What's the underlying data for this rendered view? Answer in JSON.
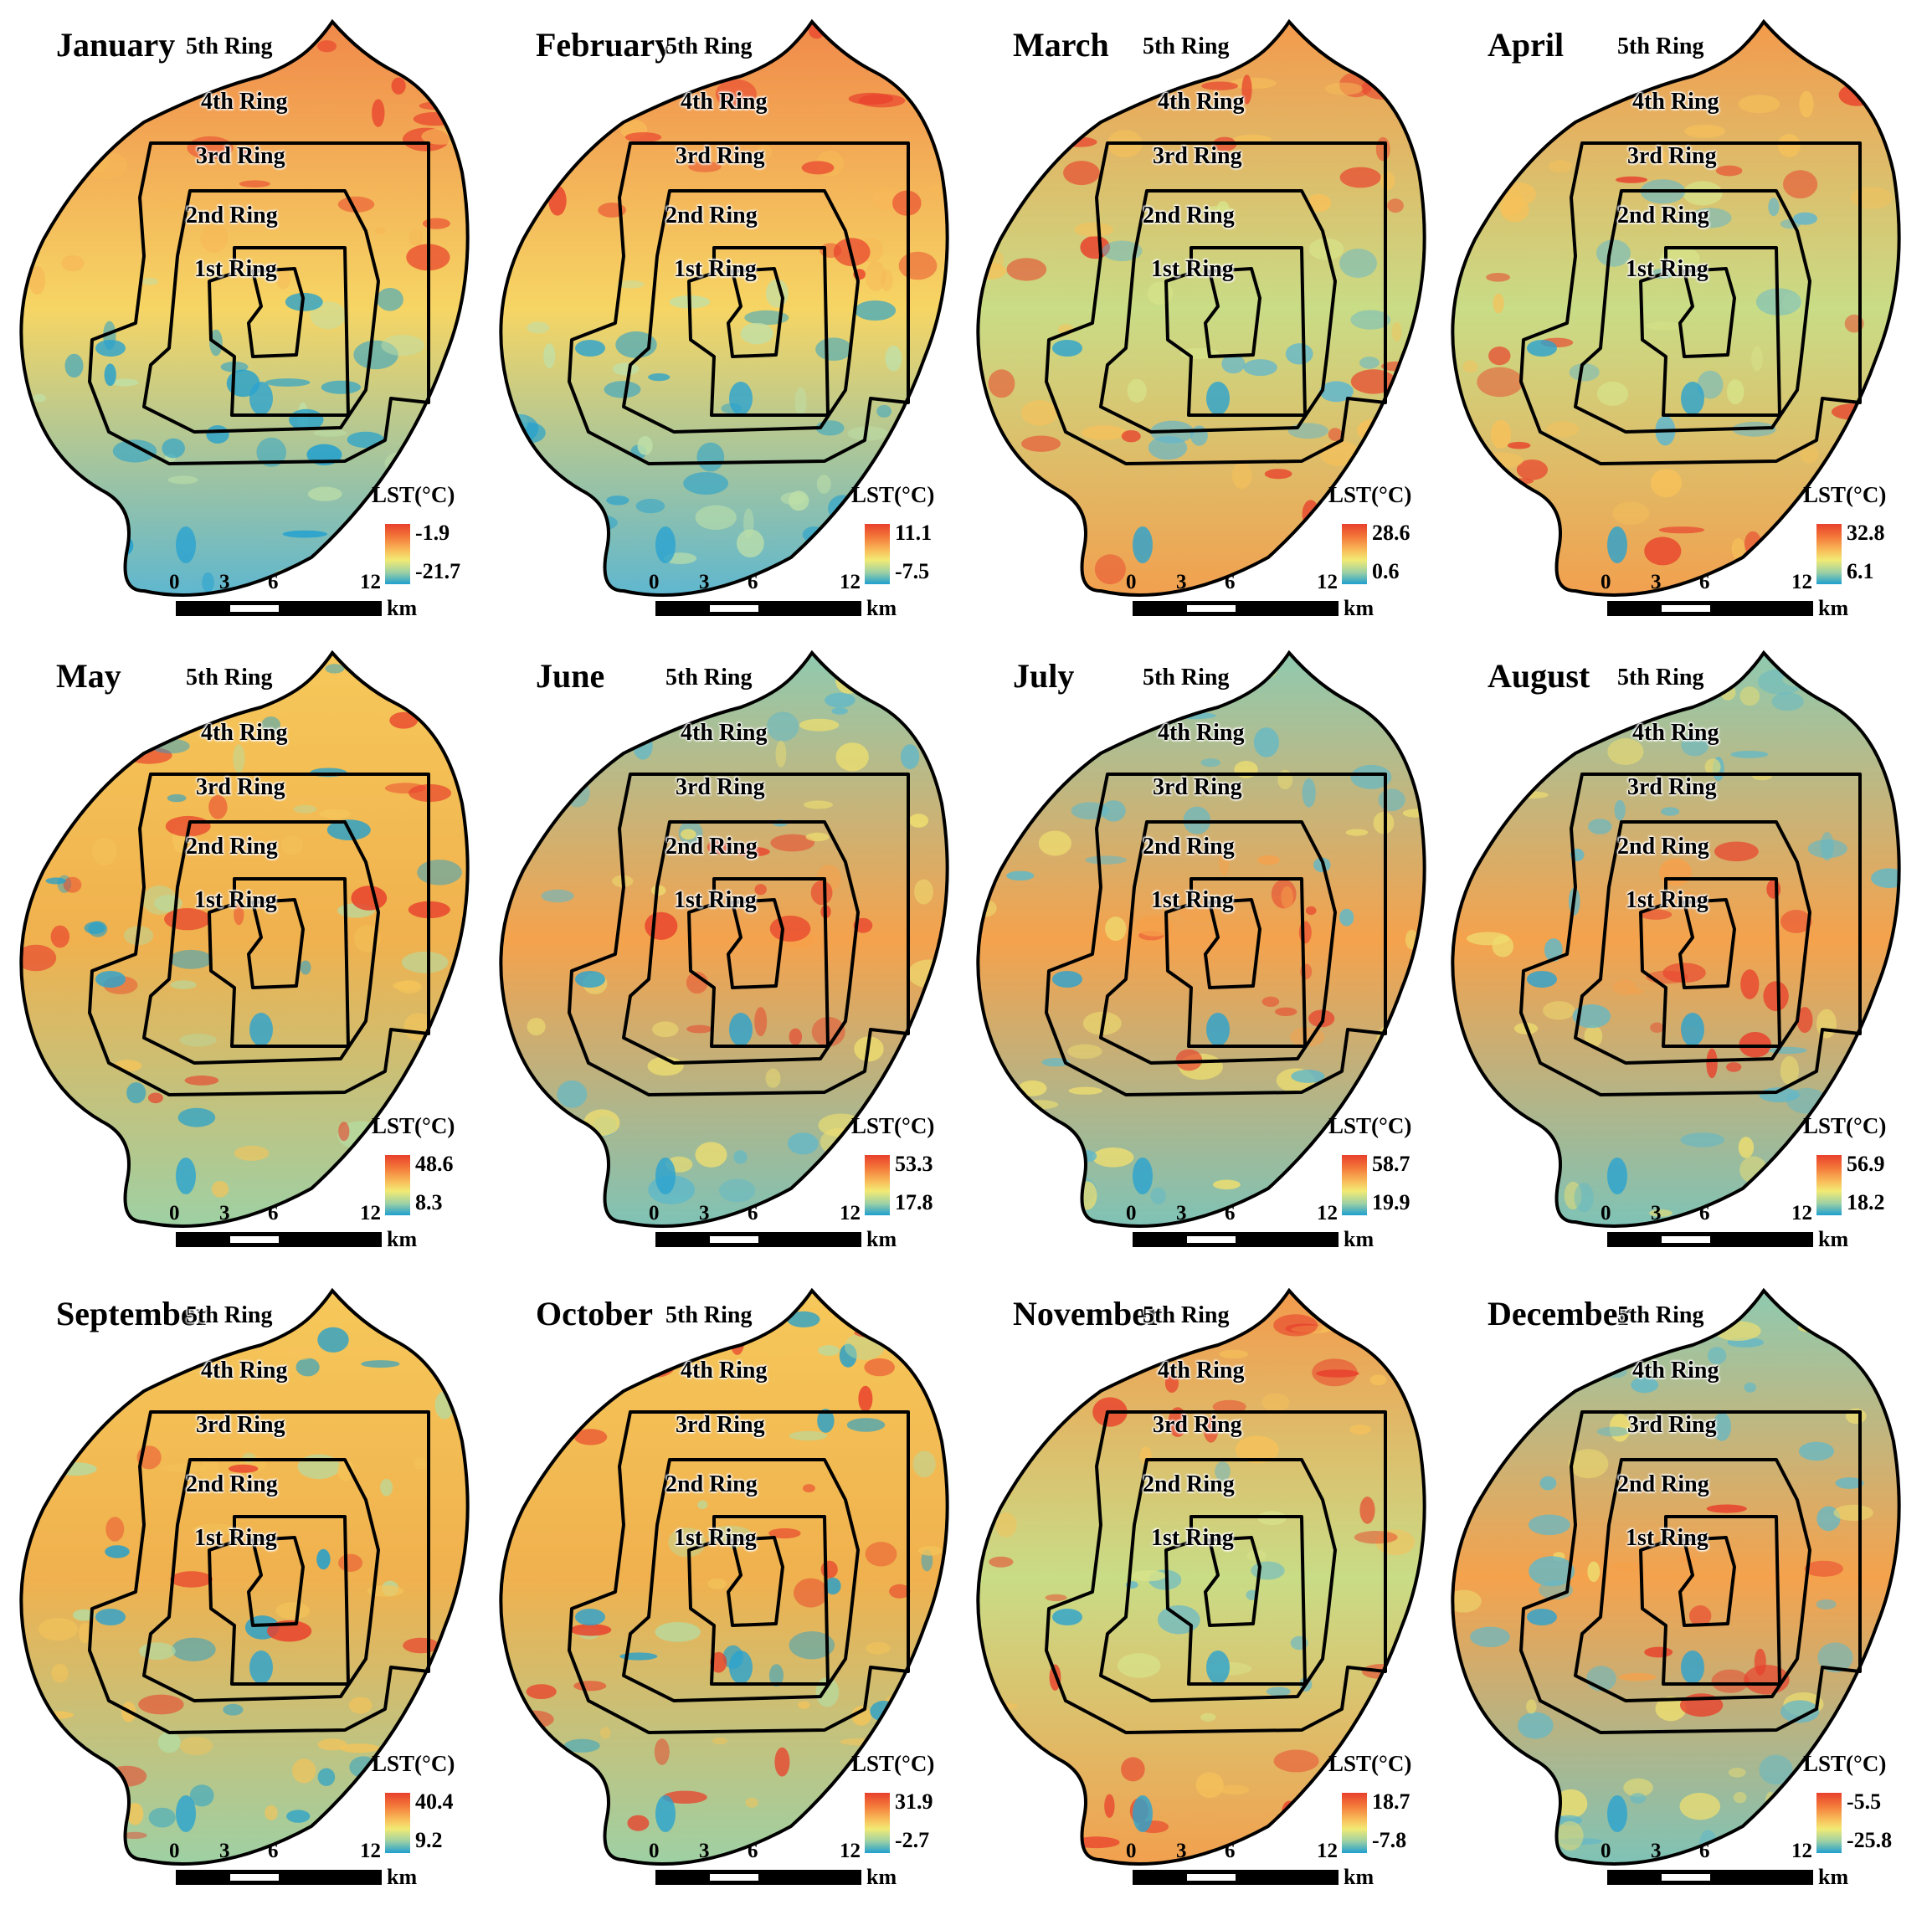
{
  "ring_labels": [
    "5th Ring",
    "4th Ring",
    "3rd Ring",
    "2nd Ring",
    "1st Ring"
  ],
  "legend_title": "LST(°C)",
  "scale_bar": {
    "ticks": [
      "0",
      "3",
      "6",
      "12"
    ],
    "unit": "km"
  },
  "colors": {
    "hot": "#e8402c",
    "warm": "#f8c05c",
    "mid": "#f2ea74",
    "cool": "#9fd1a4",
    "cold": "#1f9fcf",
    "boundary": "#000000"
  },
  "panels": [
    {
      "month": "January",
      "lst_max": "-1.9",
      "lst_min": "-21.7",
      "pattern": "north-hot"
    },
    {
      "month": "February",
      "lst_max": "11.1",
      "lst_min": "-7.5",
      "pattern": "north-hot"
    },
    {
      "month": "March",
      "lst_max": "28.6",
      "lst_min": "0.6",
      "pattern": "suburb-hot"
    },
    {
      "month": "April",
      "lst_max": "32.8",
      "lst_min": "6.1",
      "pattern": "suburb-hot"
    },
    {
      "month": "May",
      "lst_max": "48.6",
      "lst_min": "8.3",
      "pattern": "mixed"
    },
    {
      "month": "June",
      "lst_max": "53.3",
      "lst_min": "17.8",
      "pattern": "center-hot"
    },
    {
      "month": "July",
      "lst_max": "58.7",
      "lst_min": "19.9",
      "pattern": "center-hot"
    },
    {
      "month": "August",
      "lst_max": "56.9",
      "lst_min": "18.2",
      "pattern": "center-hot"
    },
    {
      "month": "September",
      "lst_max": "40.4",
      "lst_min": "9.2",
      "pattern": "mixed"
    },
    {
      "month": "October",
      "lst_max": "31.9",
      "lst_min": "-2.7",
      "pattern": "mixed"
    },
    {
      "month": "November",
      "lst_max": "18.7",
      "lst_min": "-7.8",
      "pattern": "suburb-hot"
    },
    {
      "month": "December",
      "lst_max": "-5.5",
      "lst_min": "-25.8",
      "pattern": "center-hot"
    }
  ]
}
